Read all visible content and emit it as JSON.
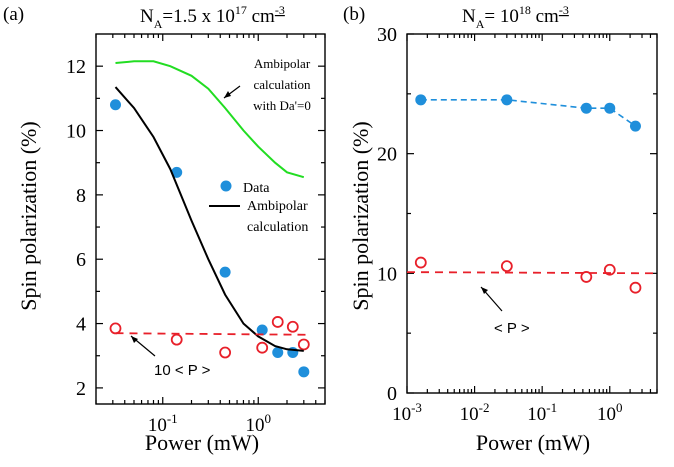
{
  "chart_data": [
    {
      "type": "scatter",
      "panel_label": "(a)",
      "title_parts": {
        "main": "N",
        "sub": "A",
        "eq": "=1.5 x 10",
        "sup": "17",
        "unit": " cm",
        "unit_sup": "-3"
      },
      "xlabel": "Power (mW)",
      "ylabel": "Spin polarization  (%)",
      "xscale": "log",
      "xlim": [
        0.02,
        5
      ],
      "ylim": [
        1.5,
        13
      ],
      "xticks": [
        {
          "v": 0.1,
          "b": "10",
          "e": "-1"
        },
        {
          "v": 1,
          "b": "10",
          "e": "0"
        }
      ],
      "yticks": [
        {
          "v": 2,
          "l": "2"
        },
        {
          "v": 4,
          "l": "4"
        },
        {
          "v": 6,
          "l": "6"
        },
        {
          "v": 8,
          "l": "8"
        },
        {
          "v": 10,
          "l": "10"
        },
        {
          "v": 12,
          "l": "12"
        }
      ],
      "series": [
        {
          "name": "Data",
          "kind": "filled-circle",
          "color": "#1f8fdb",
          "x": [
            0.032,
            0.14,
            0.45,
            1.1,
            1.6,
            2.3,
            3.0
          ],
          "y": [
            10.8,
            8.7,
            5.6,
            3.8,
            3.1,
            3.1,
            2.5
          ]
        },
        {
          "name": "10 < P >",
          "kind": "open-circle",
          "color": "#e8202a",
          "x": [
            0.032,
            0.14,
            0.45,
            1.1,
            1.6,
            2.3,
            3.0
          ],
          "y": [
            3.85,
            3.5,
            3.1,
            3.25,
            4.05,
            3.9,
            3.35
          ]
        },
        {
          "name": "Ambipolar calculation",
          "kind": "line",
          "color": "#000000",
          "x": [
            0.032,
            0.05,
            0.08,
            0.12,
            0.2,
            0.3,
            0.45,
            0.7,
            1.0,
            1.5,
            2.0,
            3.0
          ],
          "y": [
            11.35,
            10.7,
            9.8,
            8.8,
            7.2,
            6.0,
            4.9,
            4.0,
            3.6,
            3.3,
            3.2,
            3.15
          ]
        },
        {
          "name": "Ambipolar calculation with Da'=0",
          "kind": "line",
          "color": "#22dd22",
          "x": [
            0.032,
            0.05,
            0.08,
            0.12,
            0.2,
            0.3,
            0.45,
            0.7,
            1.0,
            1.5,
            2.0,
            3.0
          ],
          "y": [
            12.1,
            12.15,
            12.15,
            12.0,
            11.7,
            11.3,
            10.7,
            10.0,
            9.5,
            9.0,
            8.7,
            8.55
          ]
        },
        {
          "name": "10 <P> average",
          "kind": "dashed-line",
          "color": "#e8202a",
          "x": [
            0.032,
            3.5
          ],
          "y": [
            3.7,
            3.65
          ]
        }
      ],
      "legend": {
        "position": "center-right",
        "items": [
          "Data",
          "Ambipolar",
          "calculation"
        ]
      },
      "annotations": {
        "green_label": [
          "Ambipolar",
          "calculation",
          "with Da'=0"
        ],
        "red_label": "10 < P >"
      }
    },
    {
      "type": "scatter",
      "panel_label": "(b)",
      "title_parts": {
        "main": "N",
        "sub": "A",
        "eq": "= 10",
        "sup": "18",
        "unit": " cm",
        "unit_sup": "-3"
      },
      "xlabel": "Power  (mW)",
      "ylabel": "Spin polarization (%)",
      "xscale": "log",
      "xlim": [
        0.001,
        5
      ],
      "ylim": [
        0,
        30
      ],
      "xticks": [
        {
          "v": 0.001,
          "b": "10",
          "e": "-3"
        },
        {
          "v": 0.01,
          "b": "10",
          "e": "-2"
        },
        {
          "v": 0.1,
          "b": "10",
          "e": "-1"
        },
        {
          "v": 1,
          "b": "10",
          "e": "0"
        }
      ],
      "yticks": [
        {
          "v": 0,
          "l": "0"
        },
        {
          "v": 10,
          "l": "10"
        },
        {
          "v": 20,
          "l": "20"
        },
        {
          "v": 30,
          "l": "30"
        }
      ],
      "series": [
        {
          "name": "Spin polarization",
          "kind": "filled-circle-dashed",
          "color": "#1f8fdb",
          "x": [
            0.0016,
            0.03,
            0.45,
            1.0,
            2.4
          ],
          "y": [
            24.5,
            24.5,
            23.8,
            23.8,
            22.3
          ]
        },
        {
          "name": "< P >",
          "kind": "open-circle",
          "color": "#e8202a",
          "x": [
            0.0016,
            0.03,
            0.45,
            1.0,
            2.4
          ],
          "y": [
            10.9,
            10.6,
            9.7,
            10.3,
            8.8
          ]
        },
        {
          "name": "< P > average",
          "kind": "dashed-line",
          "color": "#e8202a",
          "x": [
            0.001,
            5
          ],
          "y": [
            10.1,
            10.0
          ]
        }
      ],
      "annotations": {
        "red_label": "< P >"
      }
    }
  ]
}
